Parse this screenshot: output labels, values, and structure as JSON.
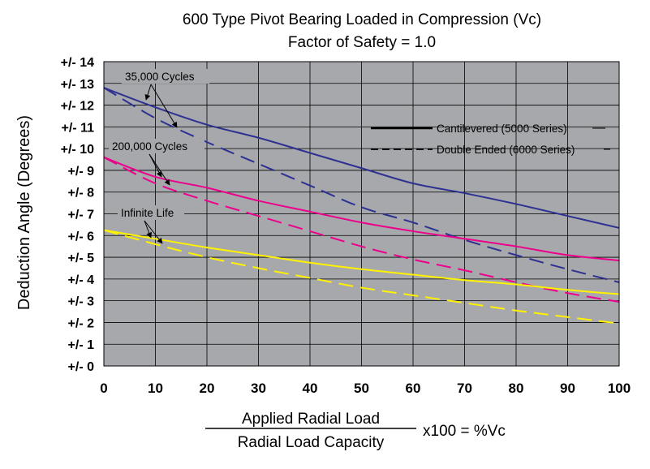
{
  "chart_data": {
    "type": "line",
    "title": "600 Type Pivot Bearing Loaded in Compression (Vc)",
    "subtitle": "Factor of Safety = 1.0",
    "ylabel": "Deduction Angle (Degrees)",
    "xlabel_numerator": "Applied Radial Load",
    "xlabel_denominator": "Radial Load Capacity",
    "xlabel_suffix": "x100 = %Vc",
    "xlim": [
      0,
      100
    ],
    "ylim": [
      0,
      14
    ],
    "x_ticks": [
      0,
      10,
      20,
      30,
      40,
      50,
      60,
      70,
      80,
      90,
      100
    ],
    "x_tick_labels": [
      "0",
      "10",
      "20",
      "30",
      "40",
      "50",
      "60",
      "70",
      "80",
      "90",
      "100"
    ],
    "y_ticks": [
      0,
      1,
      2,
      3,
      4,
      5,
      6,
      7,
      8,
      9,
      10,
      11,
      12,
      13,
      14
    ],
    "y_tick_labels": [
      "+/- 0",
      "+/- 1",
      "+/- 2",
      "+/- 3",
      "+/- 4",
      "+/- 5",
      "+/- 6",
      "+/- 7",
      "+/- 8",
      "+/- 9",
      "+/- 10",
      "+/- 11",
      "+/- 12",
      "+/- 13",
      "+/- 14"
    ],
    "grid": true,
    "plot_background": "#a6a8ab",
    "legend_position": "top-right",
    "legend": [
      {
        "label": "Cantilevered (5000 Series)",
        "style": "solid"
      },
      {
        "label": "Double Ended (6000 Series)",
        "style": "dashed"
      }
    ],
    "x": [
      0,
      10,
      20,
      30,
      40,
      50,
      60,
      70,
      80,
      90,
      100
    ],
    "series": [
      {
        "group": "35,000 Cycles",
        "style": "solid",
        "color": "#2e3192",
        "values": [
          12.8,
          11.9,
          11.1,
          10.5,
          9.8,
          9.1,
          8.4,
          7.95,
          7.45,
          6.9,
          6.35
        ]
      },
      {
        "group": "35,000 Cycles",
        "style": "dashed",
        "color": "#2e3192",
        "values": [
          12.8,
          11.4,
          10.3,
          9.3,
          8.3,
          7.3,
          6.6,
          5.8,
          5.1,
          4.45,
          3.85
        ]
      },
      {
        "group": "200,000 Cycles",
        "style": "solid",
        "color": "#ec008c",
        "values": [
          9.6,
          8.7,
          8.2,
          7.6,
          7.1,
          6.6,
          6.2,
          5.85,
          5.5,
          5.1,
          4.85
        ]
      },
      {
        "group": "200,000 Cycles",
        "style": "dashed",
        "color": "#ec008c",
        "values": [
          9.6,
          8.4,
          7.6,
          6.9,
          6.2,
          5.5,
          4.9,
          4.4,
          3.85,
          3.35,
          2.95
        ]
      },
      {
        "group": "Infinite Life",
        "style": "solid",
        "color": "#fff200",
        "values": [
          6.25,
          5.85,
          5.45,
          5.1,
          4.75,
          4.45,
          4.2,
          3.95,
          3.75,
          3.5,
          3.3
        ]
      },
      {
        "group": "Infinite Life",
        "style": "dashed",
        "color": "#fff200",
        "values": [
          6.25,
          5.6,
          5.0,
          4.5,
          4.05,
          3.6,
          3.25,
          2.9,
          2.55,
          2.25,
          1.95
        ]
      }
    ],
    "annotations": [
      {
        "text": "35,000 Cycles",
        "series_group": "35,000 Cycles"
      },
      {
        "text": "200,000 Cycles",
        "series_group": "200,000 Cycles"
      },
      {
        "text": "Infinite Life",
        "series_group": "Infinite Life"
      }
    ]
  }
}
